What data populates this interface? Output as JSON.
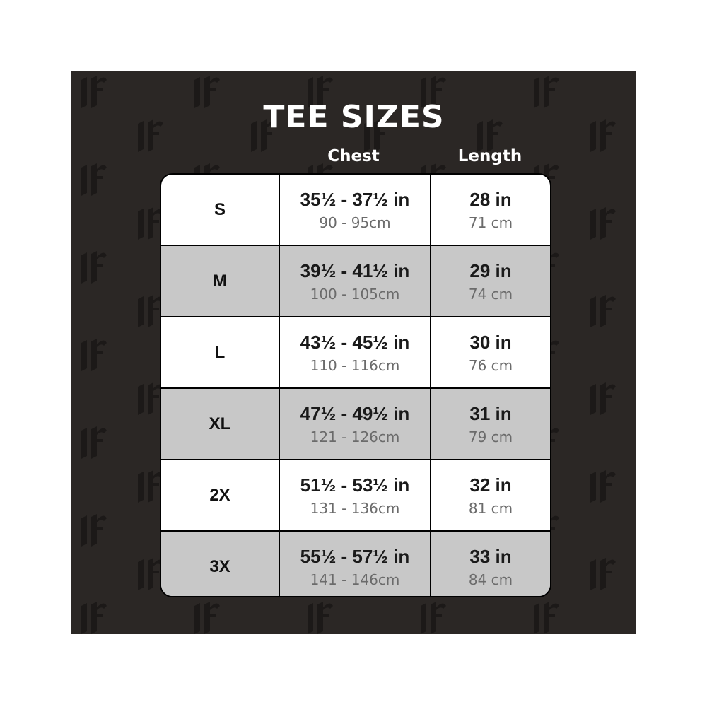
{
  "title": "TEE SIZES",
  "columns": {
    "chest": "Chest",
    "length": "Length"
  },
  "watermark": "If",
  "colors": {
    "background": "#2b2725",
    "grey_row": "#c8c8c8",
    "white_row": "#ffffff"
  },
  "rows": [
    {
      "size": "S",
      "chest_in": "35½ - 37½ in",
      "chest_cm": "90 - 95cm",
      "length_in": "28 in",
      "length_cm": "71 cm"
    },
    {
      "size": "M",
      "chest_in": "39½ - 41½ in",
      "chest_cm": "100 - 105cm",
      "length_in": "29 in",
      "length_cm": "74 cm"
    },
    {
      "size": "L",
      "chest_in": "43½ - 45½  in",
      "chest_cm": "110 - 116cm",
      "length_in": "30 in",
      "length_cm": "76 cm"
    },
    {
      "size": "XL",
      "chest_in": "47½ - 49½ in",
      "chest_cm": "121 - 126cm",
      "length_in": "31 in",
      "length_cm": "79 cm"
    },
    {
      "size": "2X",
      "chest_in": "51½ - 53½ in",
      "chest_cm": "131 - 136cm",
      "length_in": "32 in",
      "length_cm": "81 cm"
    },
    {
      "size": "3X",
      "chest_in": "55½ - 57½ in",
      "chest_cm": "141 - 146cm",
      "length_in": "33 in",
      "length_cm": "84 cm"
    }
  ]
}
